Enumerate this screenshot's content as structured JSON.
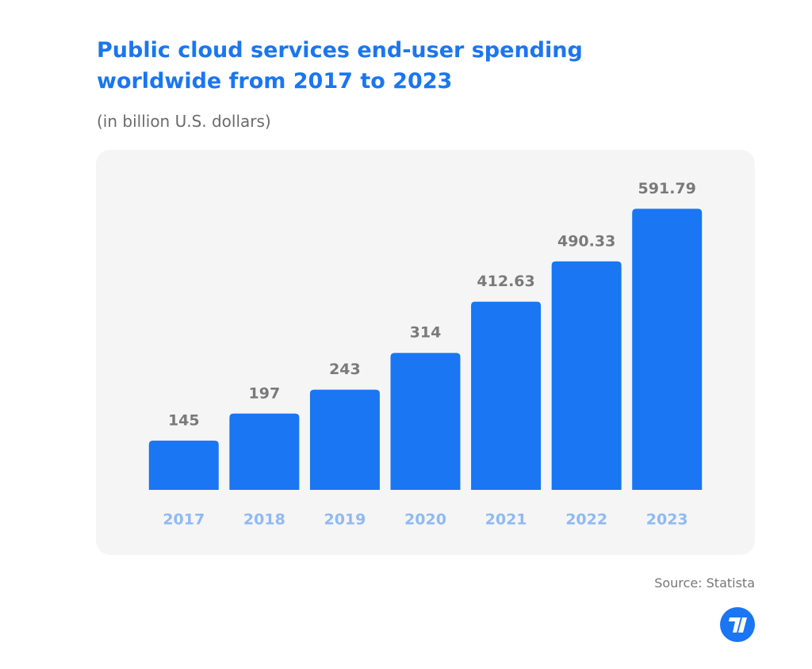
{
  "chart_data": {
    "type": "bar",
    "title": "Public cloud services end-user spending worldwide from 2017 to 2023",
    "subtitle": "(in billion U.S. dollars)",
    "source": "Source: Statista",
    "categories": [
      "2017",
      "2018",
      "2019",
      "2020",
      "2021",
      "2022",
      "2023"
    ],
    "values": [
      145,
      197,
      243,
      314,
      412.63,
      490.33,
      591.79
    ],
    "color": "#1a76f2",
    "ylim": [
      50,
      600
    ]
  }
}
